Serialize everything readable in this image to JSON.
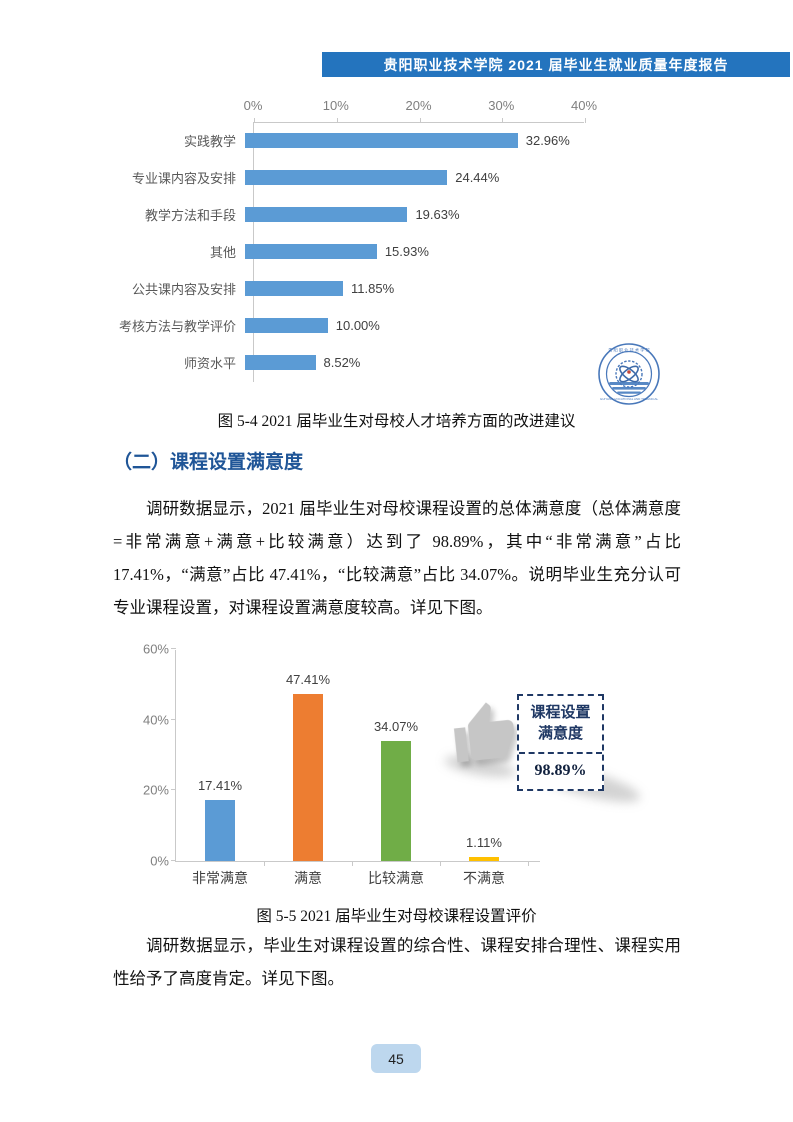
{
  "header": {
    "title": "贵阳职业技术学院 2021 届毕业生就业质量年度报告"
  },
  "chart_data": [
    {
      "type": "bar",
      "orientation": "horizontal",
      "title": "",
      "categories": [
        "实践教学",
        "专业课内容及安排",
        "教学方法和手段",
        "其他",
        "公共课内容及安排",
        "考核方法与教学评价",
        "师资水平"
      ],
      "values": [
        32.96,
        24.44,
        19.63,
        15.93,
        11.85,
        10.0,
        8.52
      ],
      "value_labels": [
        "32.96%",
        "24.44%",
        "19.63%",
        "15.93%",
        "11.85%",
        "10.00%",
        "8.52%"
      ],
      "axis_ticks": [
        0,
        10,
        20,
        30,
        40
      ],
      "axis_tick_labels": [
        "0%",
        "10%",
        "20%",
        "30%",
        "40%"
      ],
      "xlim": [
        0,
        40
      ],
      "bar_color": "#5B9BD5",
      "grid": false,
      "legend": false
    },
    {
      "type": "bar",
      "orientation": "vertical",
      "title": "",
      "categories": [
        "非常满意",
        "满意",
        "比较满意",
        "不满意"
      ],
      "values": [
        17.41,
        47.41,
        34.07,
        1.11
      ],
      "value_labels": [
        "17.41%",
        "47.41%",
        "34.07%",
        "1.11%"
      ],
      "colors": [
        "#5B9BD5",
        "#ED7D31",
        "#70AD47",
        "#FFC000"
      ],
      "axis_ticks": [
        0,
        20,
        40,
        60
      ],
      "axis_tick_labels": [
        "0%",
        "20%",
        "40%",
        "60%"
      ],
      "ylim": [
        0,
        60
      ],
      "grid": false,
      "legend": false
    }
  ],
  "figure4_caption": "图 5-4 2021 届毕业生对母校人才培养方面的改进建议",
  "section_heading": "（二）课程设置满意度",
  "paragraph1": "调研数据显示，2021 届毕业生对母校课程设置的总体满意度（总体满意度=非常满意+满意+比较满意）达到了 98.89%，其中“非常满意”占比 17.41%，“满意”占比 47.41%，“比较满意”占比 34.07%。说明毕业生充分认可专业课程设置，对课程设置满意度较高。详见下图。",
  "callout": {
    "title_line1": "课程设置",
    "title_line2": "满意度",
    "value": "98.89%"
  },
  "figure5_caption": "图 5-5 2021 届毕业生对母校课程设置评价",
  "paragraph2": "调研数据显示，毕业生对课程设置的综合性、课程安排合理性、课程实用性给予了高度肯定。详见下图。",
  "page_number": "45",
  "colors": {
    "header_bg": "#2474BE",
    "heading_text": "#1F5597",
    "bar_blue": "#5B9BD5",
    "bar_orange": "#ED7D31",
    "bar_green": "#70AD47",
    "bar_yellow": "#FFC000",
    "callout_navy": "#1F3864",
    "page_badge_bg": "#BDD7EE"
  }
}
